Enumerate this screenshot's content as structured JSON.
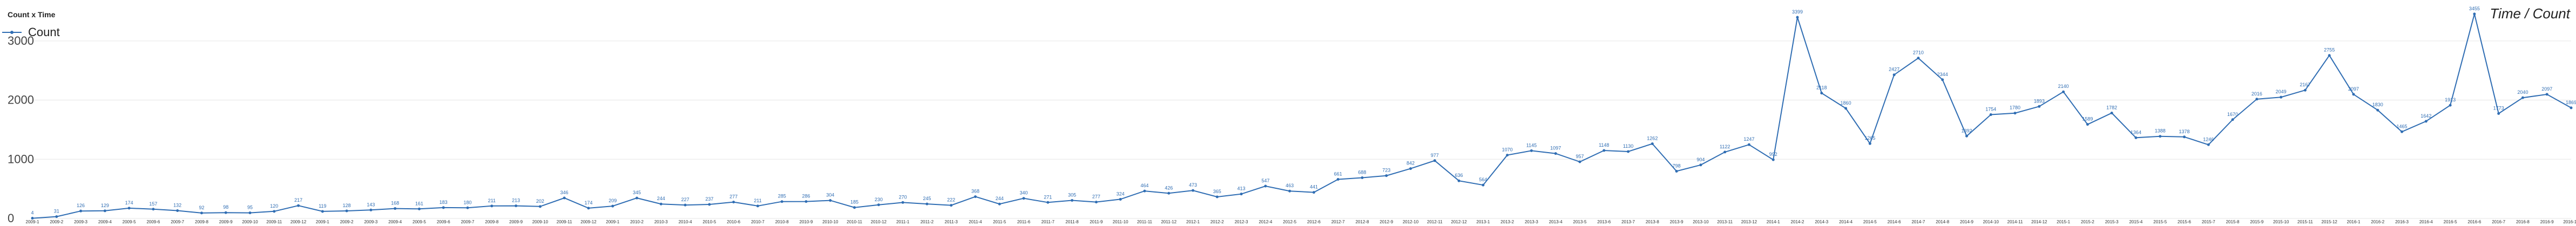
{
  "legend_title": "Count x Time",
  "side_title": "Time / Count",
  "colors": {
    "series": "#2f6db3",
    "grid": "#e6e6e6"
  },
  "chart_data": {
    "type": "line",
    "title": "",
    "xlabel": "",
    "ylabel": "",
    "ylim": [
      0,
      3600
    ],
    "yticks": [
      0,
      1000,
      2000,
      3000
    ],
    "grid": true,
    "legend": "top-left",
    "x": [
      "2009-1",
      "2009-2",
      "2009-3",
      "2009-4",
      "2009-5",
      "2009-6",
      "2009-7",
      "2009-8",
      "2009-9",
      "2009-10",
      "2009-11",
      "2009-12",
      "2009-1",
      "2009-2",
      "2009-3",
      "2009-4",
      "2009-5",
      "2009-6",
      "2009-7",
      "2009-8",
      "2009-9",
      "2009-10",
      "2009-11",
      "2009-12",
      "2009-1",
      "2010-2",
      "2010-3",
      "2010-4",
      "2010-5",
      "2010-6",
      "2010-7",
      "2010-8",
      "2010-9",
      "2010-10",
      "2010-11",
      "2010-12",
      "2011-1",
      "2011-2",
      "2011-3",
      "2011-4",
      "2011-5",
      "2011-6",
      "2011-7",
      "2011-8",
      "2011-9",
      "2011-10",
      "2011-11",
      "2011-12",
      "2012-1",
      "2012-2",
      "2012-3",
      "2012-4",
      "2012-5",
      "2012-6",
      "2012-7",
      "2012-8",
      "2012-9",
      "2012-10",
      "2012-11",
      "2012-12",
      "2013-1",
      "2013-2",
      "2013-3",
      "2013-4",
      "2013-5",
      "2013-6",
      "2013-7",
      "2013-8",
      "2013-9",
      "2013-10",
      "2013-11",
      "2013-12",
      "2014-1",
      "2014-2",
      "2014-3",
      "2014-4",
      "2014-5",
      "2014-6",
      "2014-7",
      "2014-8",
      "2014-9",
      "2014-10",
      "2014-11",
      "2014-12",
      "2015-1",
      "2015-2",
      "2015-3",
      "2015-4",
      "2015-5",
      "2015-6",
      "2015-7",
      "2015-8",
      "2015-9",
      "2015-10",
      "2015-11",
      "2015-12",
      "2016-1",
      "2016-2",
      "2016-3",
      "2016-4",
      "2016-5",
      "2016-6",
      "2016-7",
      "2016-8",
      "2016-9",
      "2016-10"
    ],
    "series": [
      {
        "name": "Count",
        "values": [
          4,
          31,
          126,
          129,
          174,
          157,
          132,
          92,
          98,
          95,
          120,
          217,
          119,
          128,
          143,
          168,
          161,
          183,
          180,
          211,
          213,
          202,
          346,
          174,
          209,
          345,
          244,
          227,
          237,
          277,
          211,
          285,
          286,
          304,
          185,
          230,
          270,
          245,
          222,
          368,
          244,
          340,
          271,
          305,
          277,
          324,
          464,
          426,
          473,
          365,
          413,
          547,
          463,
          441,
          661,
          688,
          723,
          842,
          977,
          636,
          564,
          1070,
          1145,
          1097,
          957,
          1148,
          1130,
          1262,
          798,
          904,
          1122,
          1247,
          992,
          3399,
          2118,
          1860,
          1265,
          2427,
          2710,
          2344,
          1392,
          1754,
          1780,
          1893,
          2140,
          1589,
          1782,
          1364,
          1388,
          1378,
          1246,
          1670,
          2016,
          2049,
          2167,
          2755,
          2097,
          1830,
          1465,
          1642,
          1913,
          3455,
          1773,
          2040,
          2097,
          1869
        ]
      }
    ]
  }
}
